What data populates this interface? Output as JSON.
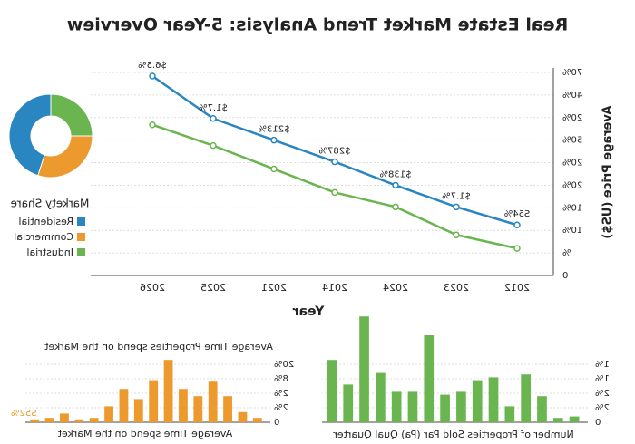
{
  "charts": [
    {
      "type": "line",
      "title": "Real Estate Market Trend Analysis: 5-Year Overview",
      "x_label": "Year",
      "y_label": "Average Price (US$)",
      "categories": [
        "2012",
        "2023",
        "2024",
        "2014",
        "2021",
        "2025",
        "2026"
      ],
      "series": [
        {
          "color": "#2a86c0",
          "values": [
            22.4,
            30.4,
            40,
            50.4,
            60,
            69.6,
            88.4
          ]
        },
        {
          "color": "#6ab550",
          "values": [
            12,
            18,
            30.4,
            36.8,
            47.2,
            57.6,
            66.8
          ]
        }
      ],
      "annotations": [
        "S54%",
        "$1.7%",
        "$138%",
        "$287%",
        "$213%",
        "$1.7%",
        "$6.5%"
      ],
      "ylim": [
        0,
        90
      ],
      "yticks": [
        0,
        {
          "value": 10,
          "label": "%"
        },
        {
          "value": 20,
          "label": "10%"
        },
        {
          "value": 30,
          "label": "10%"
        },
        {
          "value": 40,
          "label": "20%"
        },
        {
          "value": 50,
          "label": "20%"
        },
        {
          "value": 60,
          "label": "50%"
        },
        {
          "value": 70,
          "label": "20%"
        },
        {
          "value": 80,
          "label": "40%"
        },
        {
          "value": 90,
          "label": "70%"
        }
      ],
      "grid": true
    },
    {
      "type": "pie",
      "title": "Markety Share",
      "categories": [
        "Residential",
        "Commercial",
        "Industrial"
      ],
      "values": [
        45,
        30,
        25
      ],
      "colors": [
        "#2a86c0",
        "#ec9a2e",
        "#6ab550"
      ]
    },
    {
      "type": "bar",
      "title": "Average Time Properties spend on the Market",
      "x_label": "Average Time spend on the Market",
      "annotation": "S52%",
      "color": "#ec9a2e",
      "values": [
        0.3,
        0.7,
        1.8,
        2.8,
        1.8,
        2.3,
        4.3,
        2.9,
        1.6,
        2.3,
        1.1,
        0.3,
        0.2,
        0.6,
        0.3,
        0.2
      ],
      "ylim": [
        0,
        4.5
      ],
      "yticks": [
        0,
        {
          "value": 1,
          "label": "2%"
        },
        {
          "value": 2,
          "label": "2%"
        },
        {
          "value": 3,
          "label": "8%"
        },
        {
          "value": 4,
          "label": "20%"
        }
      ],
      "grid": true
    },
    {
      "type": "bar",
      "x_label": "Number of Properties Sold Par (Pa) Qual Quarter",
      "color": "#6ab550",
      "values": [
        0.4,
        0.3,
        1.8,
        3.3,
        1.1,
        3.1,
        2.9,
        2.1,
        1.9,
        6.0,
        2.1,
        2.1,
        3.4,
        7.3,
        2.6,
        4.3
      ],
      "ylim": [
        0,
        8
      ],
      "yticks": [
        0,
        {
          "value": 1,
          "label": "2%"
        },
        {
          "value": 2,
          "label": "2%"
        },
        {
          "value": 3,
          "label": "1%"
        },
        {
          "value": 4,
          "label": "1%"
        }
      ],
      "grid": true
    }
  ]
}
